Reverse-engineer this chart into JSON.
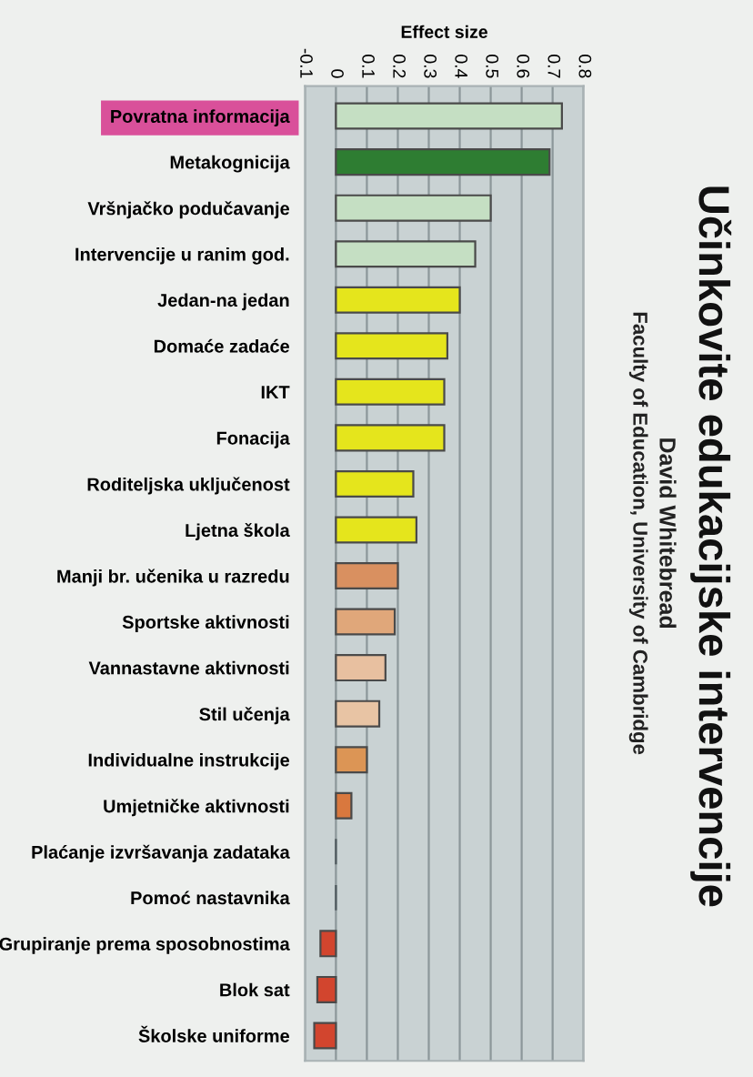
{
  "chart_data": {
    "type": "bar",
    "orientation": "horizontal",
    "title": "Učinkovite edukacijske intervencije",
    "subtitle": "David Whitebread",
    "annotations": [
      "Faculty of Education, University of Cambridge"
    ],
    "xlabel": "Effect size",
    "categories": [
      "Povratna informacija",
      "Metakognicija",
      "Vršnjačko podučavanje",
      "Intervencije u ranim god.",
      "Jedan-na jedan",
      "Domaće zadaće",
      "IKT",
      "Fonacija",
      "Roditeljska uključenost",
      "Ljetna škola",
      "Manji br. učenika u razredu",
      "Sportske aktivnosti",
      "Vannastavne aktivnosti",
      "Stil učenja",
      "Individualne instrukcije",
      "Umjetničke aktivnosti",
      "Plaćanje izvršavanja zadataka",
      "Pomoć nastavnika",
      "Grupiranje prema sposobnostima",
      "Blok sat",
      "Školske uniforme"
    ],
    "values": [
      0.73,
      0.69,
      0.5,
      0.45,
      0.4,
      0.36,
      0.35,
      0.35,
      0.25,
      0.26,
      0.2,
      0.19,
      0.16,
      0.14,
      0.1,
      0.05,
      0,
      0,
      -0.05,
      -0.06,
      -0.07
    ],
    "colors": [
      "#c5dfc3",
      "#2e7d32",
      "#c5dfc3",
      "#c5dfc3",
      "#e5e51c",
      "#e5e51c",
      "#e5e51c",
      "#e5e51c",
      "#e5e51c",
      "#e5e51c",
      "#d99060",
      "#e0a77a",
      "#e8c0a0",
      "#e8c4a4",
      "#dc9555",
      "#d9783e",
      "#4f5a5e",
      "#4f5a5e",
      "#d2452e",
      "#d2452e",
      "#d2452e"
    ],
    "xlim": [
      -0.1,
      0.8
    ],
    "xticks": [
      -0.1,
      0,
      0.1,
      0.2,
      0.3,
      0.4,
      0.5,
      0.6,
      0.7,
      0.8
    ],
    "grid": "x"
  }
}
